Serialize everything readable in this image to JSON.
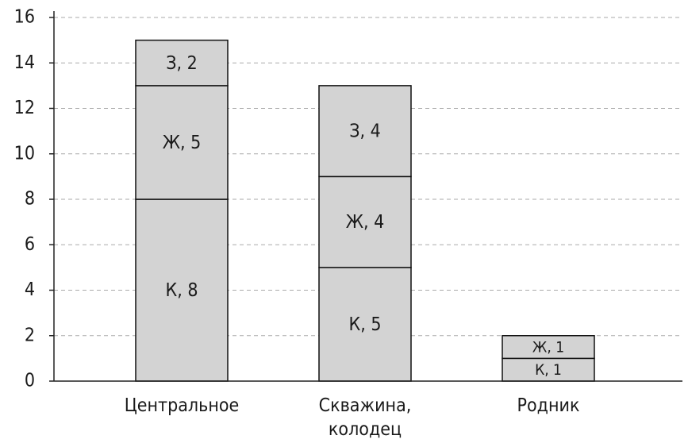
{
  "chart_data": {
    "type": "stacked-bar",
    "categories": [
      "Центральное",
      "Скважина, колодец",
      "Родник"
    ],
    "series": [
      {
        "color": "#d3d3d3",
        "values": [
          8,
          5,
          1
        ],
        "value_labels": [
          "К, 8",
          "К, 5",
          "К, 1"
        ]
      },
      {
        "color": "#d3d3d3",
        "values": [
          5,
          4,
          1
        ],
        "value_labels": [
          "Ж, 5",
          "Ж, 4",
          "Ж, 1"
        ]
      },
      {
        "color": "#d3d3d3",
        "values": [
          2,
          4,
          null
        ],
        "value_labels": [
          "З, 2",
          "З, 4",
          null
        ]
      }
    ],
    "ylim": [
      0,
      16
    ],
    "yticks": [
      0,
      2,
      4,
      6,
      8,
      10,
      12,
      14,
      16
    ],
    "grid": true
  }
}
